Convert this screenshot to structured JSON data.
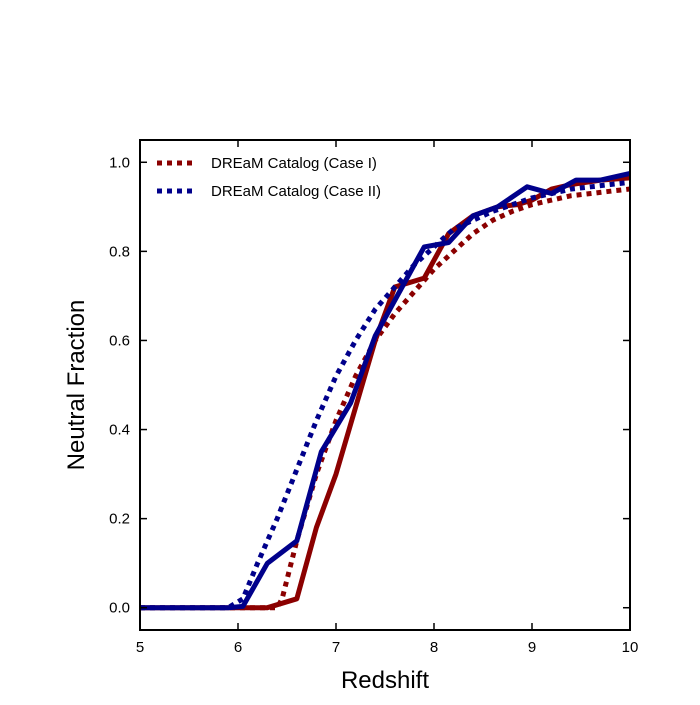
{
  "chart_data": {
    "type": "line",
    "title": "",
    "xlabel": "Redshift",
    "ylabel": "Neutral Fraction",
    "xlim": [
      5,
      10
    ],
    "ylim": [
      -0.05,
      1.05
    ],
    "xticks": [
      5,
      6,
      7,
      8,
      9,
      10
    ],
    "xtick_labels": [
      "5",
      "6",
      "7",
      "8",
      "9",
      "10"
    ],
    "yticks": [
      0.0,
      0.2,
      0.4,
      0.6,
      0.8,
      1.0
    ],
    "ytick_labels": [
      "0.0",
      "0.2",
      "0.4",
      "0.6",
      "0.8",
      "1.0"
    ],
    "grid": false,
    "legend_position": "top-left",
    "legend": [
      {
        "label": "DREaM Catalog (Case I)",
        "color": "#8b0000",
        "style": "dotted"
      },
      {
        "label": "DREaM Catalog (Case II)",
        "color": "#00008b",
        "style": "dotted"
      }
    ],
    "series": [
      {
        "name": "DREaM Catalog (Case I)",
        "color": "#8b0000",
        "style": "dotted",
        "x": [
          5.0,
          5.5,
          6.0,
          6.2,
          6.4,
          6.45,
          6.6,
          6.8,
          7.0,
          7.2,
          7.4,
          7.6,
          7.8,
          8.0,
          8.2,
          8.4,
          8.6,
          8.8,
          9.0,
          9.2,
          9.4,
          9.6,
          9.8,
          10.0
        ],
        "y": [
          0.0,
          0.0,
          0.0,
          0.0,
          0.0,
          0.02,
          0.15,
          0.3,
          0.42,
          0.52,
          0.6,
          0.66,
          0.71,
          0.76,
          0.8,
          0.84,
          0.87,
          0.89,
          0.905,
          0.915,
          0.925,
          0.93,
          0.935,
          0.94
        ]
      },
      {
        "name": "",
        "color": "#8b0000",
        "style": "solid",
        "x": [
          5.0,
          5.6,
          6.0,
          6.3,
          6.6,
          6.8,
          7.0,
          7.2,
          7.4,
          7.6,
          7.9,
          8.15,
          8.4,
          8.65,
          8.85,
          9.0,
          9.2,
          9.4,
          9.7,
          10.0
        ],
        "y": [
          0.0,
          0.0,
          0.0,
          0.0,
          0.02,
          0.18,
          0.3,
          0.45,
          0.6,
          0.72,
          0.74,
          0.84,
          0.88,
          0.9,
          0.905,
          0.915,
          0.94,
          0.95,
          0.96,
          0.965
        ]
      },
      {
        "name": "DREaM Catalog (Case II)",
        "color": "#00008b",
        "style": "dotted",
        "x": [
          5.0,
          5.5,
          5.9,
          6.05,
          6.2,
          6.4,
          6.6,
          6.8,
          7.0,
          7.2,
          7.4,
          7.6,
          7.8,
          8.0,
          8.2,
          8.4,
          8.6,
          8.8,
          9.0,
          9.2,
          9.4,
          9.6,
          9.8,
          10.0
        ],
        "y": [
          0.0,
          0.0,
          0.0,
          0.02,
          0.1,
          0.2,
          0.31,
          0.42,
          0.52,
          0.6,
          0.67,
          0.72,
          0.77,
          0.81,
          0.85,
          0.87,
          0.89,
          0.905,
          0.92,
          0.93,
          0.94,
          0.945,
          0.95,
          0.955
        ]
      },
      {
        "name": "",
        "color": "#00008b",
        "style": "solid",
        "x": [
          5.0,
          5.5,
          5.9,
          6.05,
          6.3,
          6.6,
          6.85,
          7.15,
          7.4,
          7.7,
          7.9,
          8.15,
          8.4,
          8.65,
          8.95,
          9.2,
          9.45,
          9.7,
          10.0
        ],
        "y": [
          0.0,
          0.0,
          0.0,
          0.003,
          0.1,
          0.15,
          0.35,
          0.46,
          0.61,
          0.73,
          0.81,
          0.82,
          0.88,
          0.9,
          0.945,
          0.93,
          0.96,
          0.96,
          0.975
        ]
      }
    ]
  }
}
